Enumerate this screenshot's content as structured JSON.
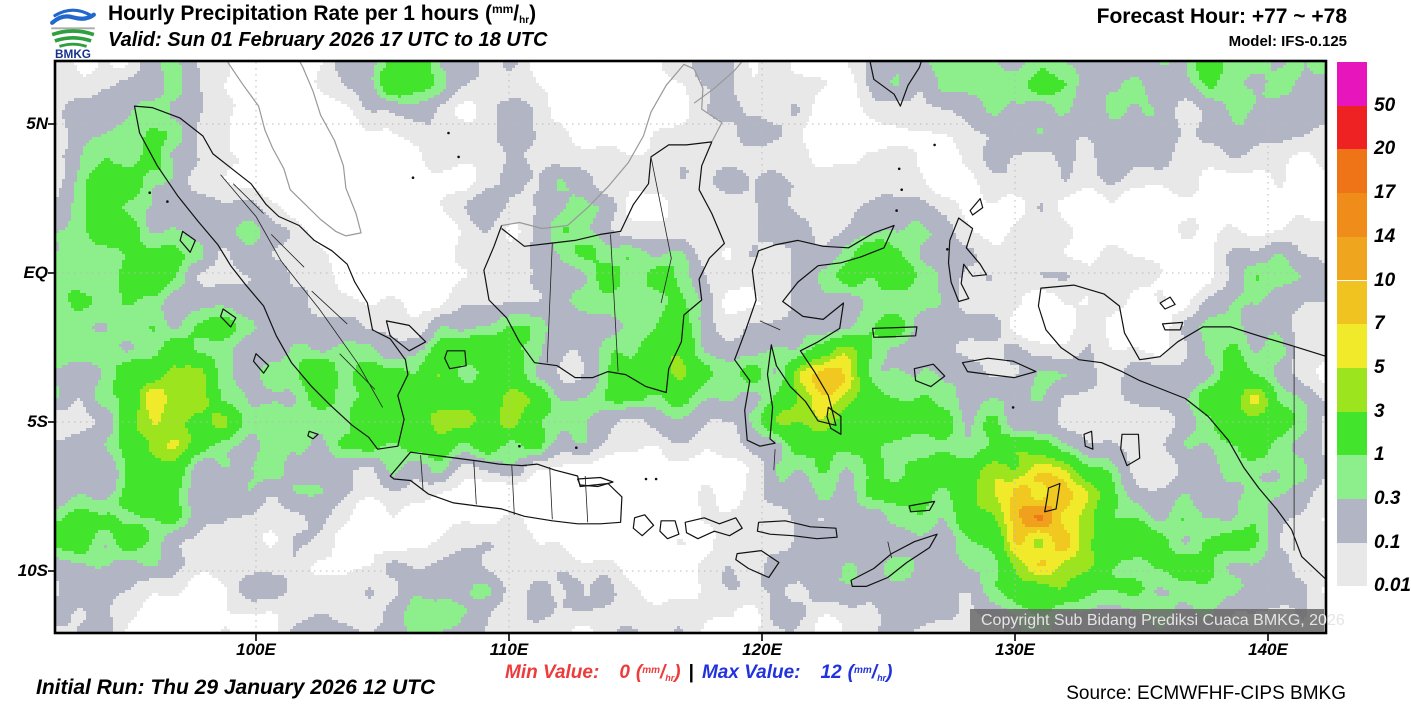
{
  "header": {
    "logo_text": "BMKG",
    "title": "Hourly Precipitation Rate per 1 hours",
    "valid_line": "Valid: Sun 01 February 2026 17 UTC to 18 UTC",
    "forecast_hour": "Forecast Hour: +77 ~ +78",
    "model": "Model: IFS-0.125"
  },
  "units": {
    "open": "(",
    "num": "mm",
    "slash": "/",
    "den": "hr",
    "close": ")"
  },
  "map": {
    "x_tick_labels": [
      "100E",
      "110E",
      "120E",
      "130E",
      "140E"
    ],
    "y_tick_labels": [
      "5N",
      "EQ",
      "5S",
      "10S"
    ],
    "copyright": "Copyright Sub Bidang Prediksi Cuaca BMKG, 2026"
  },
  "legend": {
    "items": [
      {
        "label": "50",
        "color": "#E716BC"
      },
      {
        "label": "20",
        "color": "#EE2222"
      },
      {
        "label": "17",
        "color": "#EF7418"
      },
      {
        "label": "14",
        "color": "#F08C1A"
      },
      {
        "label": "10",
        "color": "#EFA51D"
      },
      {
        "label": "7",
        "color": "#F0C320"
      },
      {
        "label": "5",
        "color": "#F0EA2B"
      },
      {
        "label": "3",
        "color": "#9CE41E"
      },
      {
        "label": "1",
        "color": "#42E52C"
      },
      {
        "label": "0.3",
        "color": "#8CEF8C"
      },
      {
        "label": "0.1",
        "color": "#B2B6C4"
      },
      {
        "label": "0.01",
        "color": "#E8E8E8"
      }
    ]
  },
  "footer": {
    "initial_run": "Initial Run: Thu 29 January 2026 12 UTC",
    "min_label": "Min Value:",
    "min_value": "0",
    "separator": "|",
    "max_label": "Max Value:",
    "max_value": "12",
    "source": "Source: ECMWFHF-CIPS BMKG"
  },
  "chart_data": {
    "type": "heatmap",
    "title": "Hourly Precipitation Rate per 1 hours (mm/hr)",
    "region": "Indonesia",
    "x_ticks": [
      "100E",
      "110E",
      "120E",
      "130E",
      "140E"
    ],
    "y_ticks": [
      "5N",
      "EQ",
      "5S",
      "10S"
    ],
    "lon_range_estimate": [
      92,
      142
    ],
    "lat_range_estimate": [
      -12,
      7
    ],
    "scale_values_mm_per_hr": [
      0.01,
      0.1,
      0.3,
      1,
      3,
      5,
      7,
      10,
      14,
      17,
      20,
      50
    ],
    "scale_colors": [
      "#E8E8E8",
      "#B2B6C4",
      "#8CEF8C",
      "#42E52C",
      "#9CE41E",
      "#F0EA2B",
      "#F0C320",
      "#EFA51D",
      "#F08C1A",
      "#EF7418",
      "#EE2222",
      "#E716BC"
    ],
    "min_value": 0,
    "max_value": 12,
    "legend_position": "right",
    "grid": "dotted graticule every 5 deg lat / 10 deg lon"
  }
}
